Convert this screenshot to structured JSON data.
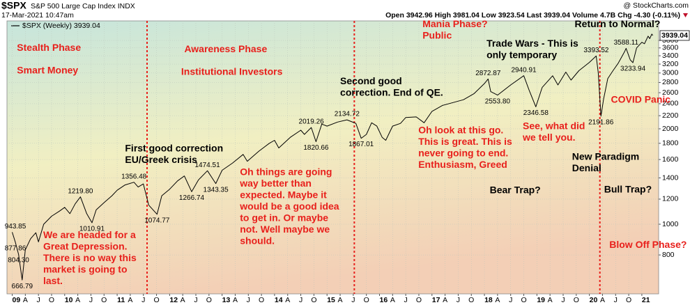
{
  "chart_data": {
    "type": "line",
    "symbol": "$SPX",
    "name": "S&P 500 Large Cap Index INDX",
    "timestamp": "17-Mar-2021 10:47am",
    "source": "@ StockCharts.com",
    "quote": "Open 3942.96 High 3981.04 Low 3923.54 Last 3939.04 Volume 4.7B Chg -4.30 (-0.11%)",
    "yscale": "log",
    "grid": true,
    "xlim": [
      2008.9,
      2021.32
    ],
    "ylim": [
      603,
      4380
    ],
    "yticks": [
      800,
      1000,
      1200,
      1400,
      1600,
      1800,
      2000,
      2200,
      2400,
      2600,
      2800,
      3000,
      3200,
      3400,
      3600,
      3800
    ],
    "xticks": [
      {
        "value": 2009,
        "label": "09"
      },
      {
        "value": 2009.25,
        "label": "A"
      },
      {
        "value": 2009.5,
        "label": "J"
      },
      {
        "value": 2009.75,
        "label": "O"
      },
      {
        "value": 2010,
        "label": "10"
      },
      {
        "value": 2010.25,
        "label": "A"
      },
      {
        "value": 2010.5,
        "label": "J"
      },
      {
        "value": 2010.75,
        "label": "O"
      },
      {
        "value": 2011,
        "label": "11"
      },
      {
        "value": 2011.25,
        "label": "A"
      },
      {
        "value": 2011.5,
        "label": "J"
      },
      {
        "value": 2011.75,
        "label": "O"
      },
      {
        "value": 2012,
        "label": "12"
      },
      {
        "value": 2012.25,
        "label": "A"
      },
      {
        "value": 2012.5,
        "label": "J"
      },
      {
        "value": 2012.75,
        "label": "O"
      },
      {
        "value": 2013,
        "label": "13"
      },
      {
        "value": 2013.25,
        "label": "A"
      },
      {
        "value": 2013.5,
        "label": "J"
      },
      {
        "value": 2013.75,
        "label": "O"
      },
      {
        "value": 2014,
        "label": "14"
      },
      {
        "value": 2014.25,
        "label": "A"
      },
      {
        "value": 2014.5,
        "label": "J"
      },
      {
        "value": 2014.75,
        "label": "O"
      },
      {
        "value": 2015,
        "label": "15"
      },
      {
        "value": 2015.25,
        "label": "A"
      },
      {
        "value": 2015.5,
        "label": "J"
      },
      {
        "value": 2015.75,
        "label": "O"
      },
      {
        "value": 2016,
        "label": "16"
      },
      {
        "value": 2016.25,
        "label": "A"
      },
      {
        "value": 2016.5,
        "label": "J"
      },
      {
        "value": 2016.75,
        "label": "O"
      },
      {
        "value": 2017,
        "label": "17"
      },
      {
        "value": 2017.25,
        "label": "A"
      },
      {
        "value": 2017.5,
        "label": "J"
      },
      {
        "value": 2017.75,
        "label": "O"
      },
      {
        "value": 2018,
        "label": "18"
      },
      {
        "value": 2018.25,
        "label": "A"
      },
      {
        "value": 2018.5,
        "label": "J"
      },
      {
        "value": 2018.75,
        "label": "O"
      },
      {
        "value": 2019,
        "label": "19"
      },
      {
        "value": 2019.25,
        "label": "A"
      },
      {
        "value": 2019.5,
        "label": "J"
      },
      {
        "value": 2019.75,
        "label": "O"
      },
      {
        "value": 2020,
        "label": "20"
      },
      {
        "value": 2020.25,
        "label": "A"
      },
      {
        "value": 2020.5,
        "label": "J"
      },
      {
        "value": 2020.75,
        "label": "O"
      },
      {
        "value": 2021,
        "label": "21"
      }
    ],
    "series": [
      {
        "name": "$SPX (Weekly) 3939.04",
        "color": "#000000",
        "x": [
          2009.0,
          2009.06,
          2009.12,
          2009.19,
          2009.25,
          2009.35,
          2009.45,
          2009.5,
          2009.6,
          2009.75,
          2009.9,
          2010.0,
          2010.1,
          2010.2,
          2010.3,
          2010.42,
          2010.52,
          2010.6,
          2010.75,
          2010.9,
          2011.0,
          2011.15,
          2011.32,
          2011.4,
          2011.5,
          2011.6,
          2011.76,
          2011.85,
          2012.0,
          2012.15,
          2012.28,
          2012.42,
          2012.55,
          2012.72,
          2012.88,
          2013.0,
          2013.2,
          2013.4,
          2013.48,
          2013.7,
          2013.9,
          2014.0,
          2014.08,
          2014.3,
          2014.5,
          2014.57,
          2014.7,
          2014.79,
          2014.9,
          2015.0,
          2015.2,
          2015.38,
          2015.55,
          2015.65,
          2015.75,
          2015.85,
          2015.95,
          2016.05,
          2016.12,
          2016.25,
          2016.4,
          2016.5,
          2016.7,
          2016.85,
          2017.0,
          2017.2,
          2017.4,
          2017.6,
          2017.8,
          2018.0,
          2018.07,
          2018.12,
          2018.25,
          2018.5,
          2018.75,
          2018.85,
          2018.98,
          2019.1,
          2019.3,
          2019.4,
          2019.55,
          2019.65,
          2019.8,
          2020.0,
          2020.13,
          2020.17,
          2020.22,
          2020.27,
          2020.35,
          2020.45,
          2020.55,
          2020.67,
          2020.7,
          2020.78,
          2020.83,
          2020.9,
          2021.0,
          2021.05,
          2021.12,
          2021.15,
          2021.19,
          2021.21
        ],
        "values": [
          943.85,
          877.86,
          804.3,
          666.79,
          830,
          900,
          940,
          880,
          1000,
          1060,
          1100,
          1130,
          1080,
          1160,
          1219.8,
          1080,
          1010.91,
          1110,
          1170,
          1230,
          1280,
          1330,
          1356.48,
          1310,
          1340,
          1150,
          1074.77,
          1230,
          1290,
          1370,
          1420,
          1266.74,
          1380,
          1474.51,
          1343.35,
          1480,
          1560,
          1660,
          1580,
          1700,
          1800,
          1840,
          1740,
          1880,
          1980,
          1920,
          2019.26,
          1820.66,
          2070,
          2040,
          2100,
          2134.72,
          2080,
          1867.01,
          1920,
          2090,
          2040,
          1880,
          1840,
          2040,
          2080,
          2170,
          2180,
          2090,
          2270,
          2370,
          2420,
          2470,
          2580,
          2780,
          2872.87,
          2620,
          2553.8,
          2750,
          2940.91,
          2650,
          2346.58,
          2700,
          2940,
          2750,
          3020,
          2850,
          3050,
          3240,
          3393.52,
          3000,
          2191.86,
          2480,
          2880,
          3050,
          3220,
          3500,
          3588.11,
          3300,
          3233.94,
          3600,
          3750,
          3710,
          3920,
          3850,
          3980,
          3939.04
        ]
      }
    ],
    "last_price": 3939.04,
    "point_labels": [
      {
        "x": 2009.0,
        "value": 943.85,
        "label": "943.85"
      },
      {
        "x": 2009.06,
        "value": 877.86,
        "label": "877.86"
      },
      {
        "x": 2009.12,
        "value": 804.3,
        "label": "804.30"
      },
      {
        "x": 2009.19,
        "value": 666.79,
        "label": "666.79"
      },
      {
        "x": 2010.3,
        "value": 1219.8,
        "label": "1219.80"
      },
      {
        "x": 2010.52,
        "value": 1010.91,
        "label": "1010.91"
      },
      {
        "x": 2011.32,
        "value": 1356.48,
        "label": "1356.48"
      },
      {
        "x": 2011.76,
        "value": 1074.77,
        "label": "1074.77"
      },
      {
        "x": 2012.42,
        "value": 1266.74,
        "label": "1266.74"
      },
      {
        "x": 2012.72,
        "value": 1474.51,
        "label": "1474.51"
      },
      {
        "x": 2012.88,
        "value": 1343.35,
        "label": "1343.35"
      },
      {
        "x": 2014.7,
        "value": 2019.26,
        "label": "2019.26"
      },
      {
        "x": 2014.79,
        "value": 1820.66,
        "label": "1820.66"
      },
      {
        "x": 2015.38,
        "value": 2134.72,
        "label": "2134.72"
      },
      {
        "x": 2015.65,
        "value": 1867.01,
        "label": "1867.01"
      },
      {
        "x": 2018.07,
        "value": 2872.87,
        "label": "2872.87"
      },
      {
        "x": 2018.25,
        "value": 2553.8,
        "label": "2553.80"
      },
      {
        "x": 2018.75,
        "value": 2940.91,
        "label": "2940.91"
      },
      {
        "x": 2018.98,
        "value": 2346.58,
        "label": "2346.58"
      },
      {
        "x": 2020.13,
        "value": 3393.52,
        "label": "3393.52"
      },
      {
        "x": 2020.22,
        "value": 2191.86,
        "label": "2191.86"
      },
      {
        "x": 2020.7,
        "value": 3588.11,
        "label": "3588.11"
      },
      {
        "x": 2020.83,
        "value": 3233.94,
        "label": "3233.94"
      }
    ],
    "vlines": [
      2011.57,
      2015.52,
      2020.2
    ],
    "vline_color": "#e8201c",
    "annotations": [
      {
        "x": 2009.09,
        "y": 3522,
        "color": "#e8201c",
        "lines": [
          "Stealth Phase"
        ]
      },
      {
        "x": 2009.09,
        "y": 2993,
        "color": "#e8201c",
        "lines": [
          "Smart Money"
        ]
      },
      {
        "x": 2012.28,
        "y": 3490,
        "color": "#e8201c",
        "lines": [
          "Awareness Phase"
        ]
      },
      {
        "x": 2012.22,
        "y": 2960,
        "color": "#e8201c",
        "lines": [
          "Institutional Investors"
        ]
      },
      {
        "x": 2016.82,
        "y": 4186,
        "color": "#e8201c",
        "lines": [
          "Mania Phase?",
          "Public"
        ]
      },
      {
        "x": 2018.04,
        "y": 3632,
        "color": "#000000",
        "lines": [
          "Trade Wars - This is",
          "only temporary"
        ]
      },
      {
        "x": 2019.72,
        "y": 4186,
        "color": "#000000",
        "lines": [
          "Return to Normal?"
        ]
      },
      {
        "x": 2015.25,
        "y": 2761,
        "color": "#000000",
        "lines": [
          "Second good",
          "correction. End of QE."
        ]
      },
      {
        "x": 2011.15,
        "y": 1695,
        "color": "#000000",
        "lines": [
          "First good correction",
          "EU/Greek crisis"
        ]
      },
      {
        "x": 2016.74,
        "y": 1934,
        "color": "#e8201c",
        "lines": [
          "Oh look at this go.",
          "This is great. This is",
          "never going to end.",
          "Enthusiasm, Greed"
        ]
      },
      {
        "x": 2018.73,
        "y": 1995,
        "color": "#e8201c",
        "lines": [
          "See, what did",
          "we tell you."
        ]
      },
      {
        "x": 2020.41,
        "y": 2419,
        "color": "#e8201c",
        "lines": [
          "COVID Panic"
        ]
      },
      {
        "x": 2019.67,
        "y": 1595,
        "color": "#000000",
        "lines": [
          "New Paradigm",
          "Denial"
        ]
      },
      {
        "x": 2018.1,
        "y": 1251,
        "color": "#000000",
        "lines": [
          "Bear Trap?"
        ]
      },
      {
        "x": 2020.28,
        "y": 1260,
        "color": "#000000",
        "lines": [
          "Bull Trap?"
        ]
      },
      {
        "x": 2013.34,
        "y": 1427,
        "color": "#e8201c",
        "lines": [
          "Oh things are going",
          "way better than",
          "expected. Maybe it",
          "would be a good idea",
          "to get in. Or maybe",
          "not. Well maybe we",
          "should."
        ]
      },
      {
        "x": 2009.59,
        "y": 904,
        "color": "#e8201c",
        "lines": [
          "We are headed for a",
          "Great Depression.",
          "There is no way this",
          "market is going to",
          "last."
        ]
      },
      {
        "x": 2020.38,
        "y": 842,
        "color": "#e8201c",
        "lines": [
          "Blow Off Phase?"
        ]
      }
    ]
  }
}
